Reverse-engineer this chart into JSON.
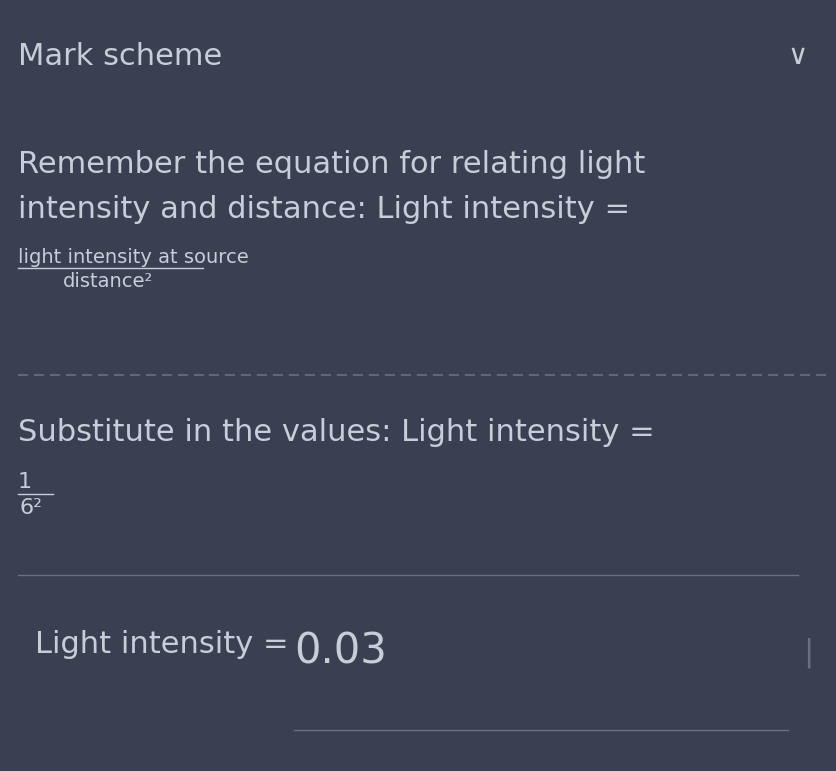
{
  "bg_color": "#3a3f52",
  "text_color": "#c8cdd8",
  "title": "Mark scheme",
  "chevron": "∨",
  "line1": "Remember the equation for relating light",
  "line2": "intensity and distance: Light intensity =",
  "fraction_numerator": "light intensity at source",
  "fraction_denominator": "distance²",
  "dashed_color": "#6b7080",
  "section2_line1": "Substitute in the values: Light intensity =",
  "frac2_numerator": "1",
  "frac2_denominator": "6²",
  "result_label": "Light intensity = ",
  "result_value": "0.03",
  "separator_color": "#6b7080",
  "title_fontsize": 22,
  "body_fontsize": 22,
  "small_fontsize": 14,
  "result_fontsize": 22,
  "result_value_fontsize": 30
}
